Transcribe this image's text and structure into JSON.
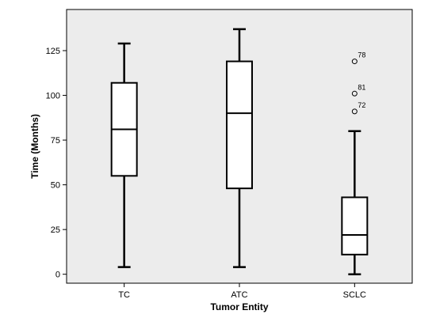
{
  "chart_data": {
    "type": "boxplot",
    "xlabel": "Tumor Entity",
    "ylabel": "Time (Months)",
    "ylim": [
      -5,
      148
    ],
    "yticks": [
      0,
      25,
      50,
      75,
      100,
      125
    ],
    "categories": [
      "TC",
      "ATC",
      "SCLC"
    ],
    "boxes": [
      {
        "category": "TC",
        "min": 4,
        "q1": 55,
        "median": 81,
        "q3": 107,
        "max": 129,
        "outliers": []
      },
      {
        "category": "ATC",
        "min": 4,
        "q1": 48,
        "median": 90,
        "q3": 119,
        "max": 137,
        "outliers": []
      },
      {
        "category": "SCLC",
        "min": 0,
        "q1": 11,
        "median": 22,
        "q3": 43,
        "max": 80,
        "outliers": [
          {
            "label": "78",
            "value": 119
          },
          {
            "label": "81",
            "value": 101
          },
          {
            "label": "72",
            "value": 91
          }
        ]
      }
    ],
    "colors": {
      "plot_background": "#ececec",
      "box_fill": "#ffffff",
      "stroke": "#000000"
    }
  }
}
